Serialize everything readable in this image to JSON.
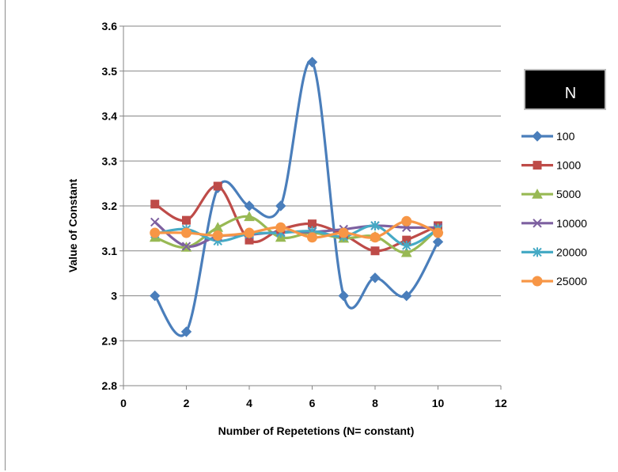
{
  "chart_data": {
    "type": "line",
    "title": "",
    "xlabel": "Number of Repetetions (N= constant)",
    "ylabel": "Value of Constant",
    "xlim": [
      0,
      12
    ],
    "ylim": [
      2.8,
      3.6
    ],
    "xticks": [
      "0",
      "2",
      "4",
      "6",
      "8",
      "10",
      "12"
    ],
    "yticks": [
      "2.8",
      "2.9",
      "3",
      "3.1",
      "3.2",
      "3.3",
      "3.4",
      "3.5",
      "3.6"
    ],
    "grid": "horizontal",
    "legend_title": "N",
    "legend_position": "right",
    "x": [
      1,
      2,
      3,
      4,
      5,
      6,
      7,
      8,
      9,
      10
    ],
    "series": [
      {
        "name": "100",
        "color": "#4a7ebb",
        "marker": "diamond",
        "values": [
          3.0,
          2.92,
          3.24,
          3.2,
          3.2,
          3.52,
          3.0,
          3.04,
          3.0,
          3.12
        ]
      },
      {
        "name": "1000",
        "color": "#be4b48",
        "marker": "square",
        "values": [
          3.204,
          3.168,
          3.244,
          3.124,
          3.148,
          3.16,
          3.136,
          3.1,
          3.124,
          3.156
        ]
      },
      {
        "name": "5000",
        "color": "#98b954",
        "marker": "triangle",
        "values": [
          3.13,
          3.108,
          3.152,
          3.176,
          3.13,
          3.14,
          3.128,
          3.132,
          3.096,
          3.15
        ]
      },
      {
        "name": "10000",
        "color": "#7d60a0",
        "marker": "x",
        "values": [
          3.164,
          3.11,
          3.132,
          3.136,
          3.142,
          3.142,
          3.148,
          3.156,
          3.152,
          3.152
        ]
      },
      {
        "name": "20000",
        "color": "#46aac5",
        "marker": "star",
        "values": [
          3.138,
          3.148,
          3.122,
          3.138,
          3.14,
          3.144,
          3.132,
          3.156,
          3.112,
          3.148
        ]
      },
      {
        "name": "25000",
        "color": "#f79646",
        "marker": "circle",
        "values": [
          3.14,
          3.14,
          3.134,
          3.14,
          3.152,
          3.13,
          3.14,
          3.13,
          3.166,
          3.14
        ]
      }
    ]
  }
}
